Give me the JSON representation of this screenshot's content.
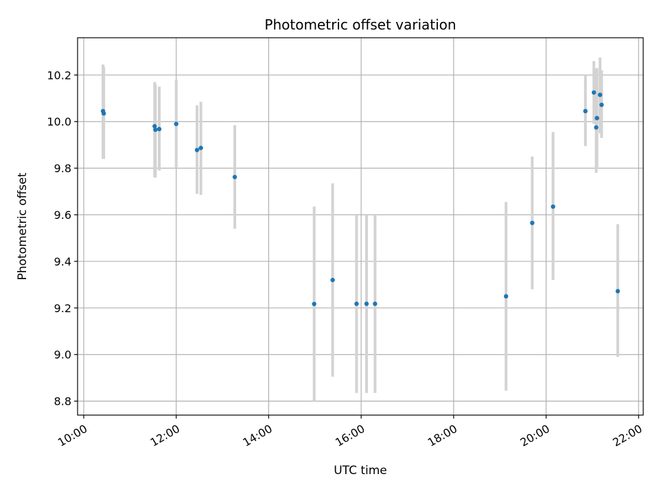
{
  "chart_data": {
    "type": "scatter",
    "title": "Photometric offset variation",
    "xlabel": "UTC time",
    "ylabel": "Photometric offset",
    "xlim": [
      "09:52",
      "22:06"
    ],
    "ylim": [
      8.74,
      10.36
    ],
    "x_ticks": [
      "10:00",
      "12:00",
      "14:00",
      "16:00",
      "18:00",
      "20:00",
      "22:00"
    ],
    "y_ticks": [
      "8.8",
      "9.0",
      "9.2",
      "9.4",
      "9.6",
      "9.8",
      "10.0",
      "10.2"
    ],
    "grid": true,
    "colors": {
      "point": "#1f77b4",
      "errorbar": "#d3d3d3",
      "grid": "#b0b0b0"
    },
    "series": [
      {
        "points": [
          {
            "x": "10:25",
            "y": 10.045,
            "ylow": 9.84,
            "yhigh": 10.245
          },
          {
            "x": "10:26",
            "y": 10.035,
            "ylow": 9.84,
            "yhigh": 10.235
          },
          {
            "x": "11:32",
            "y": 9.98,
            "ylow": 9.76,
            "yhigh": 10.17
          },
          {
            "x": "11:33",
            "y": 9.965,
            "ylow": 9.76,
            "yhigh": 10.16
          },
          {
            "x": "11:38",
            "y": 9.968,
            "ylow": 9.79,
            "yhigh": 10.15
          },
          {
            "x": "12:00",
            "y": 9.99,
            "ylow": 9.8,
            "yhigh": 10.18
          },
          {
            "x": "12:27",
            "y": 9.878,
            "ylow": 9.69,
            "yhigh": 10.07
          },
          {
            "x": "12:32",
            "y": 9.887,
            "ylow": 9.685,
            "yhigh": 10.085
          },
          {
            "x": "13:16",
            "y": 9.762,
            "ylow": 9.54,
            "yhigh": 9.985
          },
          {
            "x": "14:59",
            "y": 9.217,
            "ylow": 8.8,
            "yhigh": 9.635
          },
          {
            "x": "15:23",
            "y": 9.32,
            "ylow": 8.905,
            "yhigh": 9.735
          },
          {
            "x": "15:54",
            "y": 9.218,
            "ylow": 8.835,
            "yhigh": 9.6
          },
          {
            "x": "16:07",
            "y": 9.218,
            "ylow": 8.835,
            "yhigh": 9.6
          },
          {
            "x": "16:18",
            "y": 9.218,
            "ylow": 8.835,
            "yhigh": 9.6
          },
          {
            "x": "19:08",
            "y": 9.25,
            "ylow": 8.845,
            "yhigh": 9.655
          },
          {
            "x": "19:42",
            "y": 9.565,
            "ylow": 9.28,
            "yhigh": 9.85
          },
          {
            "x": "20:09",
            "y": 9.635,
            "ylow": 9.32,
            "yhigh": 9.955
          },
          {
            "x": "20:51",
            "y": 10.045,
            "ylow": 9.895,
            "yhigh": 10.2
          },
          {
            "x": "21:02",
            "y": 10.125,
            "ylow": 9.99,
            "yhigh": 10.26
          },
          {
            "x": "21:05",
            "y": 9.975,
            "ylow": 9.78,
            "yhigh": 10.225
          },
          {
            "x": "21:06",
            "y": 10.015,
            "ylow": 9.8,
            "yhigh": 10.23
          },
          {
            "x": "21:10",
            "y": 10.115,
            "ylow": 9.95,
            "yhigh": 10.275
          },
          {
            "x": "21:12",
            "y": 10.072,
            "ylow": 9.93,
            "yhigh": 10.22
          },
          {
            "x": "21:33",
            "y": 9.272,
            "ylow": 8.99,
            "yhigh": 9.56
          }
        ]
      }
    ]
  }
}
